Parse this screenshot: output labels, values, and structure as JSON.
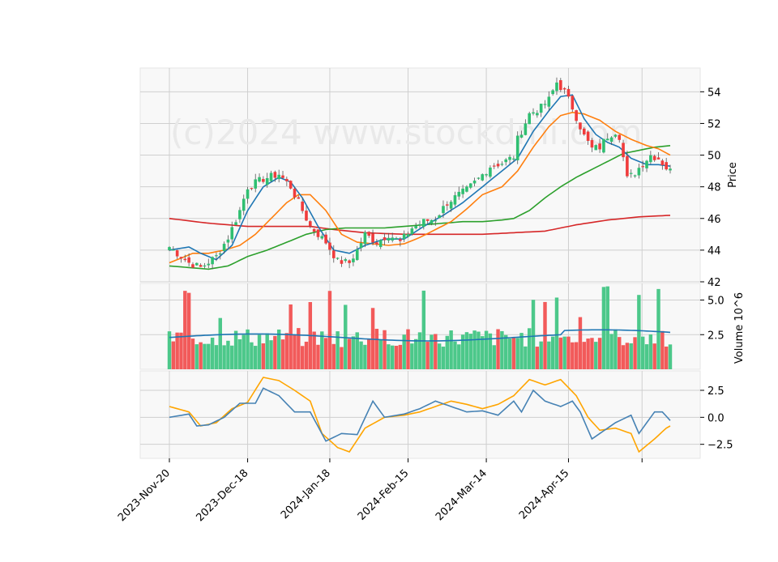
{
  "chart_data": {
    "type": "candlestick",
    "watermark": "(c)2024 www.stockdmi.com",
    "colors": {
      "up": "#2fbf71",
      "down": "#f03c3c",
      "volume_up": "#4cc88a",
      "volume_down": "#f25a5a",
      "ma_short": "#1f77b4",
      "ma_mid": "#ff7f0e",
      "ma_long": "#2ca02c",
      "ma_200": "#d62728",
      "vol_ma": "#1f77b4",
      "macd": "#4682b4",
      "signal": "#ffa500"
    },
    "x_tick_labels": [
      "2023-Nov-20",
      "2023-Dec-18",
      "2024-Jan-18",
      "2024-Feb-15",
      "2024-Mar-14",
      "2024-Apr-15"
    ],
    "price_panel": {
      "ylabel": "Price",
      "ylim": [
        42,
        55.5
      ],
      "yticks": [
        42,
        44,
        46,
        48,
        50,
        52,
        54
      ],
      "close_anchors": [
        [
          0,
          44.2
        ],
        [
          5,
          43.2
        ],
        [
          8,
          42.9
        ],
        [
          12,
          43.6
        ],
        [
          15,
          44.8
        ],
        [
          18,
          46.5
        ],
        [
          20,
          48.0
        ],
        [
          24,
          48.5
        ],
        [
          28,
          48.8
        ],
        [
          31,
          48.0
        ],
        [
          33,
          47.0
        ],
        [
          36,
          45.5
        ],
        [
          40,
          44.5
        ],
        [
          43,
          43.3
        ],
        [
          46,
          43.2
        ],
        [
          48,
          44.0
        ],
        [
          50,
          45.0
        ],
        [
          53,
          44.5
        ],
        [
          56,
          45.0
        ],
        [
          59,
          44.5
        ],
        [
          62,
          45.4
        ],
        [
          65,
          45.8
        ],
        [
          68,
          46.0
        ],
        [
          71,
          47.0
        ],
        [
          74,
          47.5
        ],
        [
          76,
          47.8
        ],
        [
          79,
          48.5
        ],
        [
          82,
          49.3
        ],
        [
          85,
          49.5
        ],
        [
          88,
          49.9
        ],
        [
          89,
          51.0
        ],
        [
          92,
          52.6
        ],
        [
          95,
          53.0
        ],
        [
          97,
          53.5
        ],
        [
          99,
          54.6
        ],
        [
          101,
          54.0
        ],
        [
          103,
          53.0
        ],
        [
          105,
          51.8
        ],
        [
          106,
          51.2
        ],
        [
          108,
          50.4
        ],
        [
          110,
          50.5
        ],
        [
          112,
          51.2
        ],
        [
          114,
          51.5
        ],
        [
          115,
          51.2
        ],
        [
          117,
          48.5
        ],
        [
          119,
          48.9
        ],
        [
          121,
          49.5
        ],
        [
          123,
          50.0
        ],
        [
          125,
          49.8
        ],
        [
          127,
          49.2
        ],
        [
          128,
          49.0
        ]
      ],
      "ma_short_anchors": [
        [
          0,
          44.0
        ],
        [
          5,
          44.2
        ],
        [
          8,
          43.8
        ],
        [
          12,
          43.4
        ],
        [
          16,
          44.3
        ],
        [
          20,
          46.5
        ],
        [
          24,
          48.0
        ],
        [
          28,
          48.6
        ],
        [
          31,
          48.3
        ],
        [
          34,
          47.3
        ],
        [
          38,
          45.5
        ],
        [
          42,
          44.0
        ],
        [
          46,
          43.8
        ],
        [
          50,
          44.3
        ],
        [
          55,
          44.7
        ],
        [
          60,
          44.7
        ],
        [
          65,
          45.5
        ],
        [
          70,
          46.2
        ],
        [
          75,
          47.0
        ],
        [
          80,
          48.0
        ],
        [
          85,
          49.0
        ],
        [
          89,
          49.8
        ],
        [
          93,
          51.5
        ],
        [
          97,
          52.8
        ],
        [
          100,
          53.7
        ],
        [
          103,
          53.8
        ],
        [
          106,
          52.3
        ],
        [
          109,
          51.3
        ],
        [
          112,
          50.8
        ],
        [
          115,
          50.5
        ],
        [
          118,
          49.8
        ],
        [
          122,
          49.4
        ],
        [
          125,
          49.4
        ],
        [
          128,
          49.3
        ]
      ],
      "ma_mid_anchors": [
        [
          0,
          43.2
        ],
        [
          6,
          43.8
        ],
        [
          10,
          43.8
        ],
        [
          14,
          44.0
        ],
        [
          18,
          44.3
        ],
        [
          22,
          45.0
        ],
        [
          26,
          46.0
        ],
        [
          30,
          47.0
        ],
        [
          33,
          47.5
        ],
        [
          36,
          47.5
        ],
        [
          40,
          46.5
        ],
        [
          44,
          45.0
        ],
        [
          48,
          44.5
        ],
        [
          52,
          44.4
        ],
        [
          56,
          44.3
        ],
        [
          60,
          44.4
        ],
        [
          64,
          44.8
        ],
        [
          68,
          45.3
        ],
        [
          72,
          45.8
        ],
        [
          76,
          46.6
        ],
        [
          80,
          47.5
        ],
        [
          85,
          48.0
        ],
        [
          89,
          49.0
        ],
        [
          93,
          50.5
        ],
        [
          97,
          51.8
        ],
        [
          100,
          52.5
        ],
        [
          103,
          52.7
        ],
        [
          106,
          52.6
        ],
        [
          110,
          52.2
        ],
        [
          114,
          51.5
        ],
        [
          118,
          51.0
        ],
        [
          122,
          50.6
        ],
        [
          125,
          50.4
        ],
        [
          128,
          50.0
        ]
      ],
      "ma_long_anchors": [
        [
          0,
          43.0
        ],
        [
          5,
          42.9
        ],
        [
          10,
          42.8
        ],
        [
          15,
          43.0
        ],
        [
          20,
          43.6
        ],
        [
          25,
          44.0
        ],
        [
          30,
          44.5
        ],
        [
          35,
          45.0
        ],
        [
          40,
          45.3
        ],
        [
          45,
          45.4
        ],
        [
          50,
          45.4
        ],
        [
          55,
          45.4
        ],
        [
          60,
          45.5
        ],
        [
          65,
          45.6
        ],
        [
          70,
          45.7
        ],
        [
          75,
          45.8
        ],
        [
          80,
          45.8
        ],
        [
          85,
          45.9
        ],
        [
          88,
          46.0
        ],
        [
          92,
          46.5
        ],
        [
          96,
          47.3
        ],
        [
          100,
          48.0
        ],
        [
          104,
          48.6
        ],
        [
          108,
          49.1
        ],
        [
          112,
          49.6
        ],
        [
          116,
          50.1
        ],
        [
          120,
          50.3
        ],
        [
          124,
          50.5
        ],
        [
          128,
          50.6
        ]
      ],
      "ma_200_anchors": [
        [
          0,
          46.0
        ],
        [
          10,
          45.7
        ],
        [
          20,
          45.5
        ],
        [
          30,
          45.5
        ],
        [
          36,
          45.5
        ],
        [
          42,
          45.3
        ],
        [
          50,
          45.1
        ],
        [
          60,
          45.0
        ],
        [
          70,
          45.0
        ],
        [
          80,
          45.0
        ],
        [
          88,
          45.1
        ],
        [
          96,
          45.2
        ],
        [
          104,
          45.6
        ],
        [
          112,
          45.9
        ],
        [
          120,
          46.1
        ],
        [
          128,
          46.2
        ]
      ]
    },
    "volume_panel": {
      "ylabel": "Volume  10^6",
      "ylim": [
        0,
        6.2
      ],
      "yticks": [
        2.5,
        5.0
      ],
      "ytick_labels": [
        "2.5",
        "5.0"
      ],
      "volume_ma": 2.3
    },
    "macd_panel": {
      "ylim": [
        -3.8,
        4.3
      ],
      "yticks": [
        -2.5,
        0.0,
        2.5
      ],
      "ytick_labels": [
        "−2.5",
        "0.0",
        "2.5"
      ],
      "macd_anchors": [
        [
          0,
          0.0
        ],
        [
          5,
          0.3
        ],
        [
          7,
          -0.8
        ],
        [
          10,
          -0.7
        ],
        [
          14,
          0.0
        ],
        [
          18,
          1.3
        ],
        [
          22,
          1.3
        ],
        [
          24,
          2.7
        ],
        [
          28,
          2.0
        ],
        [
          32,
          0.5
        ],
        [
          36,
          0.5
        ],
        [
          40,
          -2.2
        ],
        [
          44,
          -1.5
        ],
        [
          48,
          -1.6
        ],
        [
          52,
          1.5
        ],
        [
          55,
          0.0
        ],
        [
          60,
          0.3
        ],
        [
          64,
          0.8
        ],
        [
          68,
          1.5
        ],
        [
          72,
          1.0
        ],
        [
          76,
          0.5
        ],
        [
          80,
          0.6
        ],
        [
          84,
          0.2
        ],
        [
          88,
          1.5
        ],
        [
          90,
          0.5
        ],
        [
          93,
          2.5
        ],
        [
          96,
          1.5
        ],
        [
          100,
          1.0
        ],
        [
          103,
          1.5
        ],
        [
          105,
          0.5
        ],
        [
          108,
          -2.0
        ],
        [
          110,
          -1.5
        ],
        [
          114,
          -0.5
        ],
        [
          118,
          0.2
        ],
        [
          120,
          -1.5
        ],
        [
          124,
          0.5
        ],
        [
          126,
          0.5
        ],
        [
          128,
          -0.3
        ]
      ],
      "signal_anchors": [
        [
          0,
          1.0
        ],
        [
          5,
          0.5
        ],
        [
          8,
          -0.8
        ],
        [
          12,
          -0.5
        ],
        [
          16,
          0.8
        ],
        [
          20,
          1.4
        ],
        [
          24,
          3.7
        ],
        [
          28,
          3.4
        ],
        [
          32,
          2.5
        ],
        [
          36,
          1.5
        ],
        [
          39,
          -1.5
        ],
        [
          43,
          -2.8
        ],
        [
          46,
          -3.2
        ],
        [
          50,
          -1.0
        ],
        [
          55,
          0.0
        ],
        [
          60,
          0.2
        ],
        [
          64,
          0.5
        ],
        [
          68,
          1.0
        ],
        [
          72,
          1.5
        ],
        [
          76,
          1.2
        ],
        [
          80,
          0.8
        ],
        [
          84,
          1.2
        ],
        [
          88,
          2.0
        ],
        [
          92,
          3.5
        ],
        [
          96,
          3.0
        ],
        [
          100,
          3.5
        ],
        [
          104,
          2.0
        ],
        [
          107,
          0.0
        ],
        [
          110,
          -1.2
        ],
        [
          114,
          -1.0
        ],
        [
          118,
          -1.5
        ],
        [
          120,
          -3.2
        ],
        [
          124,
          -2.0
        ],
        [
          127,
          -1.0
        ],
        [
          128,
          -0.8
        ]
      ]
    }
  }
}
